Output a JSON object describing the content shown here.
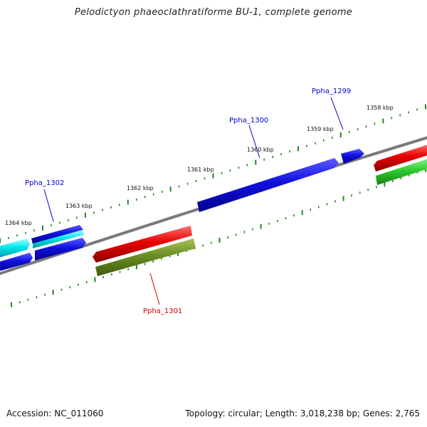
{
  "title": "Pelodictyon phaeoclathratiforme BU-1, complete genome",
  "footer": {
    "accession": "Accession: NC_011060",
    "summary": "Topology: circular; Length: 3,018,238 bp; Genes: 2,765"
  },
  "colors": {
    "backbone": "#7a7a7a",
    "tick": "#1e8a1e",
    "blue_gene": "#1010e0",
    "cyan_gene": "#00e5ee",
    "red_gene": "#e80000",
    "olive_gene": "#6b8e23",
    "green_gene": "#2ecc2e",
    "label_blue": "#0000cc",
    "label_red": "#cc0000"
  },
  "scale_labels": [
    "1364 kbp",
    "1363 kbp",
    "1362 kbp",
    "1361 kbp",
    "1360 kbp",
    "1359 kbp",
    "1358 kbp"
  ],
  "gene_labels": [
    {
      "id": "ppha-1302",
      "text": "Ppha_1302",
      "color": "#0000cc"
    },
    {
      "id": "ppha-1300",
      "text": "Ppha_1300",
      "color": "#0000cc"
    },
    {
      "id": "ppha-1299",
      "text": "Ppha_1299",
      "color": "#0000cc"
    },
    {
      "id": "ppha-1301",
      "text": "Ppha_1301",
      "color": "#cc0000"
    }
  ]
}
